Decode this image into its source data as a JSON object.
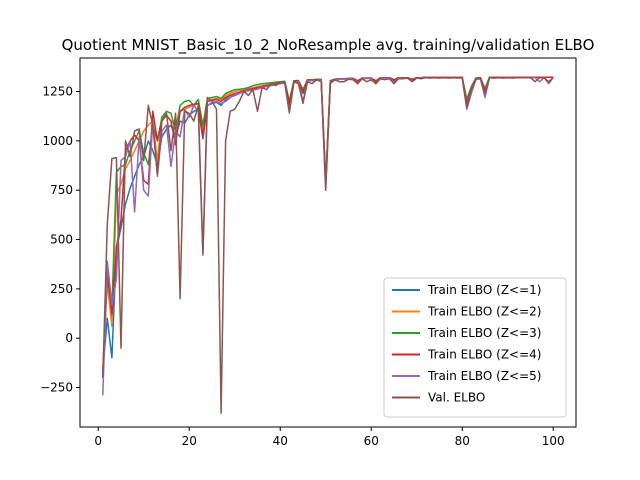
{
  "chart_data": {
    "type": "line",
    "title": "Quotient MNIST_Basic_10_2_NoResample avg. training/validation ELBO",
    "xlabel": "",
    "ylabel": "",
    "xlim": [
      -4,
      105
    ],
    "ylim": [
      -450,
      1420
    ],
    "xticks": [
      0,
      20,
      40,
      60,
      80,
      100
    ],
    "yticks": [
      -250,
      0,
      250,
      500,
      750,
      1000,
      1250
    ],
    "xtick_labels": [
      "0",
      "20",
      "40",
      "60",
      "80",
      "100"
    ],
    "ytick_labels": [
      "−250",
      "0",
      "250",
      "500",
      "750",
      "1000",
      "1250"
    ],
    "grid": false,
    "legend_position": "lower-right",
    "series": [
      {
        "name": "Train ELBO (Z<=1)",
        "color": "#1f77b4",
        "x": [
          1,
          2,
          3,
          4,
          5,
          6,
          7,
          8,
          9,
          10,
          11,
          12,
          13,
          14,
          15,
          16,
          17,
          18,
          19,
          20,
          21,
          22,
          23,
          24,
          25,
          26,
          27,
          28,
          29,
          30,
          31,
          32,
          33,
          34,
          35,
          36,
          37,
          38,
          39,
          40,
          41,
          42,
          43,
          44,
          45,
          46,
          47,
          48,
          49,
          50,
          51,
          52,
          53,
          54,
          55,
          56,
          57,
          58,
          59,
          60,
          61,
          62,
          63,
          64,
          65,
          66,
          67,
          68,
          69,
          70,
          71,
          72,
          73,
          74,
          75,
          76,
          77,
          78,
          79,
          80,
          81,
          82,
          83,
          84,
          85,
          86,
          87,
          88,
          89,
          90,
          91,
          92,
          93,
          94,
          95,
          96,
          97,
          98,
          99,
          100
        ],
        "y": [
          -160,
          100,
          -100,
          450,
          560,
          680,
          760,
          820,
          880,
          920,
          1000,
          950,
          880,
          1020,
          1060,
          1080,
          1020,
          1100,
          1090,
          1130,
          1150,
          1160,
          1010,
          1180,
          1190,
          1195,
          1180,
          1210,
          1220,
          1230,
          1240,
          1250,
          1255,
          1260,
          1270,
          1275,
          1280,
          1285,
          1290,
          1295,
          1295,
          1160,
          1300,
          1300,
          1240,
          1305,
          1305,
          1310,
          1310,
          780,
          1300,
          1310,
          1312,
          1312,
          1314,
          1315,
          1300,
          1316,
          1318,
          1318,
          1300,
          1318,
          1320,
          1320,
          1305,
          1320,
          1320,
          1320,
          1310,
          1320,
          1320,
          1322,
          1322,
          1322,
          1322,
          1322,
          1322,
          1322,
          1322,
          1322,
          1200,
          1270,
          1315,
          1320,
          1250,
          1320,
          1322,
          1322,
          1322,
          1322,
          1322,
          1322,
          1322,
          1322,
          1322,
          1322,
          1322,
          1322,
          1322,
          1322
        ]
      },
      {
        "name": "Train ELBO (Z<=2)",
        "color": "#ff7f0e",
        "x": [
          1,
          2,
          3,
          4,
          5,
          6,
          7,
          8,
          9,
          10,
          11,
          12,
          13,
          14,
          15,
          16,
          17,
          18,
          19,
          20,
          21,
          22,
          23,
          24,
          25,
          26,
          27,
          28,
          29,
          30,
          31,
          32,
          33,
          34,
          35,
          36,
          37,
          38,
          39,
          40,
          41,
          42,
          43,
          44,
          45,
          46,
          47,
          48,
          49,
          50,
          51,
          52,
          53,
          54,
          55,
          56,
          57,
          58,
          59,
          60,
          61,
          62,
          63,
          64,
          65,
          66,
          67,
          68,
          69,
          70,
          71,
          72,
          73,
          74,
          75,
          76,
          77,
          78,
          79,
          80,
          81,
          82,
          83,
          84,
          85,
          86,
          87,
          88,
          89,
          90,
          91,
          92,
          93,
          94,
          95,
          96,
          97,
          98,
          99,
          100
        ],
        "y": [
          -150,
          280,
          60,
          730,
          780,
          860,
          900,
          950,
          1000,
          1050,
          1080,
          1100,
          900,
          1120,
          1130,
          1100,
          1080,
          1150,
          1160,
          1170,
          1180,
          1190,
          1050,
          1200,
          1210,
          1215,
          1210,
          1230,
          1240,
          1250,
          1255,
          1260,
          1265,
          1270,
          1275,
          1280,
          1285,
          1290,
          1295,
          1298,
          1300,
          1200,
          1305,
          1305,
          1260,
          1308,
          1308,
          1312,
          1312,
          790,
          1305,
          1312,
          1314,
          1314,
          1316,
          1317,
          1305,
          1318,
          1318,
          1318,
          1305,
          1320,
          1320,
          1320,
          1310,
          1320,
          1320,
          1320,
          1312,
          1320,
          1320,
          1322,
          1322,
          1322,
          1322,
          1322,
          1322,
          1322,
          1322,
          1322,
          1200,
          1270,
          1318,
          1320,
          1260,
          1322,
          1322,
          1322,
          1322,
          1322,
          1322,
          1322,
          1322,
          1322,
          1322,
          1322,
          1322,
          1322,
          1322,
          1322
        ]
      },
      {
        "name": "Train ELBO (Z<=3)",
        "color": "#2ca02c",
        "x": [
          1,
          2,
          3,
          4,
          5,
          6,
          7,
          8,
          9,
          10,
          11,
          12,
          13,
          14,
          15,
          16,
          17,
          18,
          19,
          20,
          21,
          22,
          23,
          24,
          25,
          26,
          27,
          28,
          29,
          30,
          31,
          32,
          33,
          34,
          35,
          36,
          37,
          38,
          39,
          40,
          41,
          42,
          43,
          44,
          45,
          46,
          47,
          48,
          49,
          50,
          51,
          52,
          53,
          54,
          55,
          56,
          57,
          58,
          59,
          60,
          61,
          62,
          63,
          64,
          65,
          66,
          67,
          68,
          69,
          70,
          71,
          72,
          73,
          74,
          75,
          76,
          77,
          78,
          79,
          80,
          81,
          82,
          83,
          84,
          85,
          86,
          87,
          88,
          89,
          90,
          91,
          92,
          93,
          94,
          95,
          96,
          97,
          98,
          99,
          100
        ],
        "y": [
          -200,
          310,
          150,
          840,
          870,
          880,
          950,
          1000,
          1050,
          940,
          880,
          1080,
          1000,
          1120,
          1150,
          1140,
          1050,
          1180,
          1200,
          1205,
          1180,
          1210,
          1080,
          1215,
          1220,
          1225,
          1215,
          1240,
          1250,
          1260,
          1262,
          1265,
          1270,
          1280,
          1285,
          1290,
          1292,
          1295,
          1298,
          1300,
          1302,
          1200,
          1305,
          1306,
          1260,
          1310,
          1310,
          1312,
          1312,
          800,
          1305,
          1313,
          1315,
          1315,
          1316,
          1317,
          1305,
          1318,
          1318,
          1318,
          1305,
          1320,
          1320,
          1320,
          1310,
          1320,
          1320,
          1320,
          1312,
          1320,
          1320,
          1322,
          1322,
          1322,
          1322,
          1322,
          1322,
          1322,
          1322,
          1322,
          1210,
          1275,
          1318,
          1320,
          1265,
          1322,
          1322,
          1322,
          1322,
          1322,
          1322,
          1322,
          1322,
          1322,
          1322,
          1322,
          1322,
          1322,
          1322,
          1322
        ]
      },
      {
        "name": "Train ELBO (Z<=4)",
        "color": "#d62728",
        "x": [
          1,
          2,
          3,
          4,
          5,
          6,
          7,
          8,
          9,
          10,
          11,
          12,
          13,
          14,
          15,
          16,
          17,
          18,
          19,
          20,
          21,
          22,
          23,
          24,
          25,
          26,
          27,
          28,
          29,
          30,
          31,
          32,
          33,
          34,
          35,
          36,
          37,
          38,
          39,
          40,
          41,
          42,
          43,
          44,
          45,
          46,
          47,
          48,
          49,
          50,
          51,
          52,
          53,
          54,
          55,
          56,
          57,
          58,
          59,
          60,
          61,
          62,
          63,
          64,
          65,
          66,
          67,
          68,
          69,
          70,
          71,
          72,
          73,
          74,
          75,
          76,
          77,
          78,
          79,
          80,
          81,
          82,
          83,
          84,
          85,
          86,
          87,
          88,
          89,
          90,
          91,
          92,
          93,
          94,
          95,
          96,
          97,
          98,
          99,
          100
        ],
        "y": [
          -180,
          350,
          120,
          460,
          600,
          950,
          1000,
          1030,
          1000,
          800,
          780,
          1150,
          1000,
          1100,
          1130,
          1100,
          980,
          1150,
          1170,
          1180,
          1185,
          1190,
          1020,
          1200,
          1205,
          1210,
          1200,
          1220,
          1230,
          1240,
          1245,
          1255,
          1260,
          1265,
          1270,
          1275,
          1280,
          1285,
          1290,
          1295,
          1298,
          1190,
          1302,
          1304,
          1250,
          1308,
          1308,
          1310,
          1310,
          790,
          1302,
          1312,
          1314,
          1314,
          1316,
          1317,
          1302,
          1318,
          1318,
          1318,
          1302,
          1320,
          1320,
          1320,
          1308,
          1320,
          1320,
          1320,
          1310,
          1320,
          1320,
          1322,
          1322,
          1322,
          1322,
          1322,
          1322,
          1322,
          1322,
          1322,
          1190,
          1265,
          1316,
          1320,
          1255,
          1322,
          1322,
          1322,
          1322,
          1322,
          1322,
          1322,
          1322,
          1322,
          1322,
          1322,
          1322,
          1322,
          1322,
          1322
        ]
      },
      {
        "name": "Train ELBO (Z<=5)",
        "color": "#9467bd",
        "x": [
          1,
          2,
          3,
          4,
          5,
          6,
          7,
          8,
          9,
          10,
          11,
          12,
          13,
          14,
          15,
          16,
          17,
          18,
          19,
          20,
          21,
          22,
          23,
          24,
          25,
          26,
          27,
          28,
          29,
          30,
          31,
          32,
          33,
          34,
          35,
          36,
          37,
          38,
          39,
          40,
          41,
          42,
          43,
          44,
          45,
          46,
          47,
          48,
          49,
          50,
          51,
          52,
          53,
          54,
          55,
          56,
          57,
          58,
          59,
          60,
          61,
          62,
          63,
          64,
          65,
          66,
          67,
          68,
          69,
          70,
          71,
          72,
          73,
          74,
          75,
          76,
          77,
          78,
          79,
          80,
          81,
          82,
          83,
          84,
          85,
          86,
          87,
          88,
          89,
          90,
          91,
          92,
          93,
          94,
          95,
          96,
          97,
          98,
          99,
          100
        ],
        "y": [
          -290,
          390,
          170,
          300,
          900,
          920,
          1000,
          640,
          1020,
          750,
          720,
          1100,
          820,
          1050,
          1080,
          870,
          1050,
          1020,
          1160,
          1120,
          1180,
          1150,
          420,
          1180,
          1195,
          1200,
          1190,
          1200,
          1220,
          1235,
          1240,
          1250,
          1255,
          1258,
          1262,
          1270,
          1275,
          1280,
          1285,
          1290,
          1292,
          1140,
          1296,
          1300,
          1200,
          1305,
          1305,
          1308,
          1308,
          760,
          1295,
          1310,
          1312,
          1312,
          1314,
          1315,
          1290,
          1316,
          1316,
          1316,
          1290,
          1318,
          1318,
          1318,
          1295,
          1318,
          1318,
          1318,
          1300,
          1318,
          1318,
          1320,
          1320,
          1320,
          1320,
          1320,
          1320,
          1320,
          1320,
          1320,
          1160,
          1240,
          1310,
          1315,
          1220,
          1320,
          1320,
          1320,
          1320,
          1320,
          1320,
          1320,
          1320,
          1320,
          1320,
          1320,
          1300,
          1320,
          1290,
          1320
        ]
      },
      {
        "name": "Val. ELBO",
        "color": "#8c564b",
        "x": [
          1,
          2,
          3,
          4,
          5,
          6,
          7,
          8,
          9,
          10,
          11,
          12,
          13,
          14,
          15,
          16,
          17,
          18,
          19,
          20,
          21,
          22,
          23,
          24,
          25,
          26,
          27,
          28,
          29,
          30,
          31,
          32,
          33,
          34,
          35,
          36,
          37,
          38,
          39,
          40,
          41,
          42,
          43,
          44,
          45,
          46,
          47,
          48,
          49,
          50,
          51,
          52,
          53,
          54,
          55,
          56,
          57,
          58,
          59,
          60,
          61,
          62,
          63,
          64,
          65,
          66,
          67,
          68,
          69,
          70,
          71,
          72,
          73,
          74,
          75,
          76,
          77,
          78,
          79,
          80,
          81,
          82,
          83,
          84,
          85,
          86,
          87,
          88,
          89,
          90,
          91,
          92,
          93,
          94,
          95,
          96,
          97,
          98,
          99,
          100
        ],
        "y": [
          -200,
          580,
          910,
          915,
          -50,
          1000,
          920,
          1050,
          1060,
          900,
          1180,
          1080,
          830,
          1100,
          1140,
          950,
          1140,
          200,
          1150,
          1140,
          1100,
          1180,
          430,
          1220,
          1200,
          1160,
          -380,
          1000,
          1150,
          1160,
          1200,
          1250,
          1230,
          1260,
          1150,
          1270,
          1260,
          1290,
          1280,
          1295,
          1300,
          1150,
          1300,
          1290,
          1190,
          1300,
          1290,
          1310,
          1300,
          750,
          1290,
          1310,
          1300,
          1300,
          1312,
          1310,
          1290,
          1315,
          1300,
          1310,
          1290,
          1315,
          1310,
          1315,
          1290,
          1315,
          1315,
          1318,
          1300,
          1318,
          1315,
          1320,
          1318,
          1320,
          1318,
          1320,
          1318,
          1320,
          1318,
          1320,
          1170,
          1260,
          1315,
          1318,
          1240,
          1320,
          1318,
          1320,
          1318,
          1320,
          1318,
          1320,
          1320,
          1320,
          1320,
          1300,
          1320,
          1320,
          1300,
          1320
        ]
      }
    ]
  }
}
